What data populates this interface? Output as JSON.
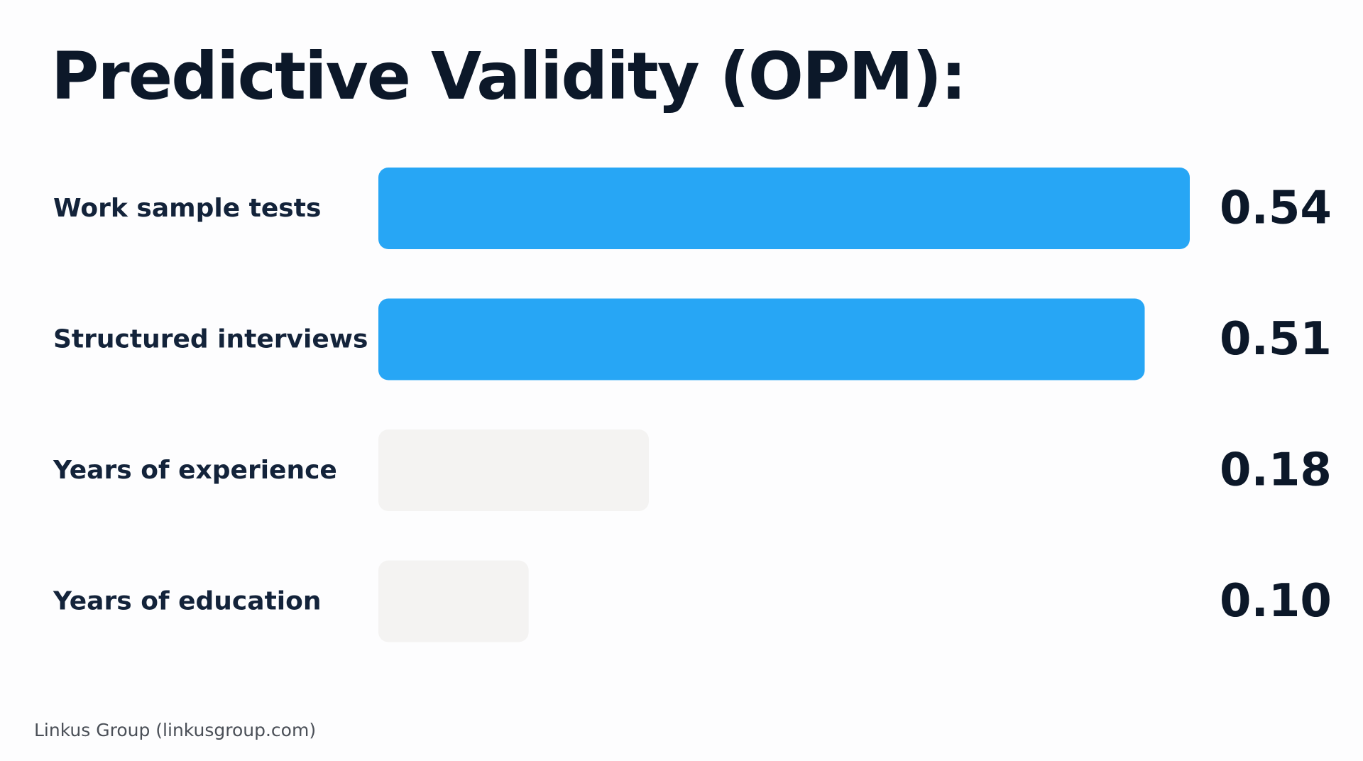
{
  "title": "Predictive Validity (OPM):",
  "footer": "Linkus Group (linkusgroup.com)",
  "colors": {
    "highlight": "#27a6f5",
    "muted": "#f4f3f2"
  },
  "chart_data": {
    "type": "bar",
    "orientation": "horizontal",
    "categories": [
      "Work sample tests",
      "Structured interviews",
      "Years of experience",
      "Years of education"
    ],
    "values": [
      0.54,
      0.51,
      0.18,
      0.1
    ],
    "value_labels": [
      "0.54",
      "0.51",
      "0.18",
      "0.10"
    ],
    "highlighted": [
      true,
      true,
      false,
      false
    ],
    "title": "Predictive Validity (OPM):",
    "xlim": [
      0,
      0.54
    ],
    "grid": false,
    "legend": "none"
  }
}
